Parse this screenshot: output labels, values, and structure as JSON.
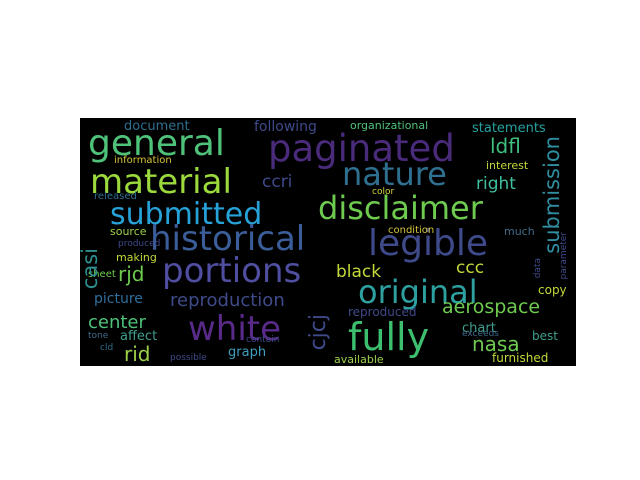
{
  "words": [
    {
      "text": "general",
      "color": "#4fc27a"
    },
    {
      "text": "paginated",
      "color": "#4a2a7a"
    },
    {
      "text": "material",
      "color": "#9bd93c"
    },
    {
      "text": "nature",
      "color": "#2f6f8f"
    },
    {
      "text": "submitted",
      "color": "#26a2d8"
    },
    {
      "text": "disclaimer",
      "color": "#6ecb4f"
    },
    {
      "text": "historical",
      "color": "#3b5e9a"
    },
    {
      "text": "legible",
      "color": "#3f4a8a"
    },
    {
      "text": "portions",
      "color": "#4f4ea0"
    },
    {
      "text": "original",
      "color": "#2ea0a0"
    },
    {
      "text": "white",
      "color": "#5a2a8a"
    },
    {
      "text": "fully",
      "color": "#3cbf6f"
    },
    {
      "text": "reproduction",
      "color": "#3f4a8a"
    },
    {
      "text": "document",
      "color": "#2f6f8f"
    },
    {
      "text": "following",
      "color": "#3f4a8a"
    },
    {
      "text": "organizational",
      "color": "#4fc27a"
    },
    {
      "text": "statements",
      "color": "#26a2a0"
    },
    {
      "text": "ldfl",
      "color": "#3fbf7f"
    },
    {
      "text": "information",
      "color": "#d4c43a"
    },
    {
      "text": "ccri",
      "color": "#3f4a8a"
    },
    {
      "text": "right",
      "color": "#3fbf9f"
    },
    {
      "text": "interest",
      "color": "#c4d83a"
    },
    {
      "text": "color",
      "color": "#d4d43a"
    },
    {
      "text": "released",
      "color": "#2f6f8f"
    },
    {
      "text": "condition",
      "color": "#d4c43a"
    },
    {
      "text": "source",
      "color": "#9fd04a"
    },
    {
      "text": "produced",
      "color": "#3f4a8a"
    },
    {
      "text": "much",
      "color": "#3f6a8a"
    },
    {
      "text": "making",
      "color": "#c4d83a"
    },
    {
      "text": "rjd",
      "color": "#6ecb4f"
    },
    {
      "text": "black",
      "color": "#c4d83a"
    },
    {
      "text": "ccc",
      "color": "#c4d83a"
    },
    {
      "text": "sheet",
      "color": "#6ecb4f"
    },
    {
      "text": "copy",
      "color": "#c4d83a"
    },
    {
      "text": "picture",
      "color": "#2f6f9f"
    },
    {
      "text": "aerospace",
      "color": "#6ecb4f"
    },
    {
      "text": "center",
      "color": "#4fc27a"
    },
    {
      "text": "chart",
      "color": "#3f9f8f"
    },
    {
      "text": "contain",
      "color": "#3f4a8a"
    },
    {
      "text": "reproduced",
      "color": "#3f4a8a"
    },
    {
      "text": "affect",
      "color": "#3f9f8f"
    },
    {
      "text": "best",
      "color": "#3f9f8f"
    },
    {
      "text": "nasa",
      "color": "#6ecb4f"
    },
    {
      "text": "rid",
      "color": "#9fd04a"
    },
    {
      "text": "tone",
      "color": "#3f6a8a"
    },
    {
      "text": "exceeds",
      "color": "#3f6a8a"
    },
    {
      "text": "cld",
      "color": "#2f6f8f"
    },
    {
      "text": "graph",
      "color": "#3f9fbf"
    },
    {
      "text": "possible",
      "color": "#3f4a8a"
    },
    {
      "text": "available",
      "color": "#9fd04a"
    },
    {
      "text": "furnished",
      "color": "#c4d83a"
    },
    {
      "text": "casi",
      "color": "#2f8f8f"
    },
    {
      "text": "cjcj",
      "color": "#3f4a8a"
    },
    {
      "text": "submission",
      "color": "#2f8fa0"
    },
    {
      "text": "data",
      "color": "#3f4a8a"
    },
    {
      "text": "parameter",
      "color": "#3f4a8a"
    }
  ]
}
